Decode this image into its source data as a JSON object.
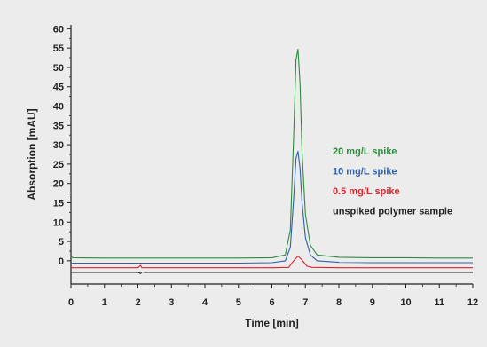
{
  "chart_data": {
    "type": "line",
    "title": "",
    "xlabel": "Time [min]",
    "ylabel": "Absorption [mAU]",
    "xlim": [
      0,
      12
    ],
    "ylim": [
      -6,
      61
    ],
    "x_ticks": [
      0,
      1,
      2,
      3,
      4,
      5,
      6,
      7,
      8,
      9,
      10,
      11,
      12
    ],
    "y_ticks": [
      0,
      5,
      10,
      15,
      20,
      25,
      30,
      35,
      40,
      45,
      50,
      55,
      60
    ],
    "grid": false,
    "legend_position": "right",
    "series": [
      {
        "name": "20 mg/L spike",
        "color": "#2e8b3e",
        "x": [
          0,
          0.05,
          1,
          2,
          3,
          4,
          5,
          6,
          6.4,
          6.55,
          6.65,
          6.72,
          6.78,
          6.84,
          6.9,
          7.0,
          7.15,
          7.35,
          8,
          9,
          10,
          11,
          12
        ],
        "y": [
          1.2,
          0.8,
          0.7,
          0.7,
          0.7,
          0.7,
          0.7,
          0.8,
          1.5,
          8,
          32,
          52,
          54.7,
          46,
          28,
          12,
          4,
          1.5,
          0.9,
          0.8,
          0.8,
          0.7,
          0.7
        ]
      },
      {
        "name": "10 mg/L spike",
        "color": "#2f5fa8",
        "x": [
          0,
          1,
          2,
          3,
          4,
          5,
          6,
          6.4,
          6.55,
          6.65,
          6.72,
          6.78,
          6.84,
          6.9,
          7.0,
          7.15,
          7.35,
          8,
          9,
          10,
          11,
          12
        ],
        "y": [
          -0.6,
          -0.6,
          -0.6,
          -0.6,
          -0.6,
          -0.6,
          -0.5,
          0,
          3.5,
          16,
          26.5,
          28.3,
          24,
          15,
          6,
          1.5,
          0,
          -0.4,
          -0.5,
          -0.5,
          -0.5,
          -0.5
        ]
      },
      {
        "name": "0.5 mg/L spike",
        "color": "#e0232b",
        "x": [
          0,
          1,
          2,
          2.08,
          2.12,
          2.2,
          3,
          4,
          5,
          6,
          6.5,
          6.65,
          6.78,
          6.9,
          7.05,
          7.2,
          8,
          9,
          10,
          11,
          12
        ],
        "y": [
          -1.8,
          -1.8,
          -1.8,
          -1.2,
          -1.8,
          -1.8,
          -1.8,
          -1.8,
          -1.8,
          -1.8,
          -1.7,
          0,
          1.2,
          0.2,
          -1.4,
          -1.7,
          -1.8,
          -1.8,
          -1.8,
          -1.8,
          -1.8
        ]
      },
      {
        "name": "unspiked polymer sample",
        "color": "#222222",
        "x": [
          0,
          1,
          2,
          2.08,
          2.12,
          2.2,
          3,
          4,
          5,
          6,
          7,
          8,
          9,
          10,
          11,
          12
        ],
        "y": [
          -3.0,
          -3.0,
          -3.0,
          -3.3,
          -2.9,
          -3.0,
          -3.0,
          -3.0,
          -3.0,
          -3.0,
          -3.0,
          -3.0,
          -3.0,
          -3.0,
          -3.0,
          -3.0
        ]
      }
    ]
  }
}
